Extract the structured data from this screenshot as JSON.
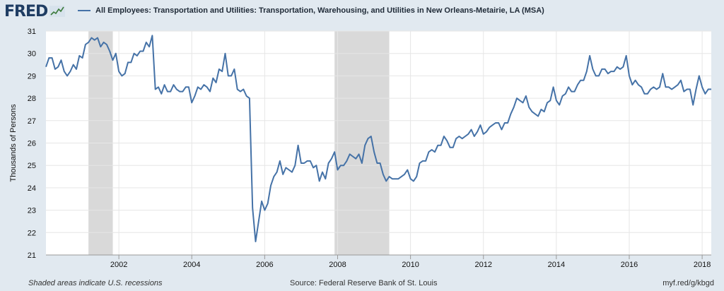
{
  "logo": {
    "text": "FRED"
  },
  "legend": {
    "label": "All Employees: Transportation and Utilities: Transportation, Warehousing, and Utilities in New Orleans-Metairie, LA (MSA)",
    "color": "#4572a7"
  },
  "footer": {
    "left": "Shaded areas indicate U.S. recessions",
    "source": "Source: Federal Reserve Bank of St. Louis",
    "url": "myf.red/g/kbgd"
  },
  "chart_data": {
    "type": "line",
    "ylabel": "Thousands of Persons",
    "ylim": [
      21,
      31
    ],
    "yticks": [
      21,
      22,
      23,
      24,
      25,
      26,
      27,
      28,
      29,
      30,
      31
    ],
    "xlim": [
      "2000-01",
      "2018-04"
    ],
    "xticks": [
      "2002",
      "2004",
      "2006",
      "2008",
      "2010",
      "2012",
      "2014",
      "2016",
      "2018"
    ],
    "grid": true,
    "recessions": [
      [
        "2001-03",
        "2001-11"
      ],
      [
        "2007-12",
        "2009-06"
      ]
    ],
    "series": [
      {
        "name": "All Employees: Transportation and Utilities: Transportation, Warehousing, and Utilities in New Orleans-Metairie, LA (MSA)",
        "color": "#4572a7",
        "points": [
          [
            "2000-01",
            29.4
          ],
          [
            "2000-02",
            29.8
          ],
          [
            "2000-03",
            29.8
          ],
          [
            "2000-04",
            29.3
          ],
          [
            "2000-05",
            29.4
          ],
          [
            "2000-06",
            29.7
          ],
          [
            "2000-07",
            29.2
          ],
          [
            "2000-08",
            29.0
          ],
          [
            "2000-09",
            29.2
          ],
          [
            "2000-10",
            29.5
          ],
          [
            "2000-11",
            29.3
          ],
          [
            "2000-12",
            29.9
          ],
          [
            "2001-01",
            29.8
          ],
          [
            "2001-02",
            30.4
          ],
          [
            "2001-03",
            30.5
          ],
          [
            "2001-04",
            30.7
          ],
          [
            "2001-05",
            30.6
          ],
          [
            "2001-06",
            30.7
          ],
          [
            "2001-07",
            30.3
          ],
          [
            "2001-08",
            30.5
          ],
          [
            "2001-09",
            30.4
          ],
          [
            "2001-10",
            30.1
          ],
          [
            "2001-11",
            29.7
          ],
          [
            "2001-12",
            30.0
          ],
          [
            "2002-01",
            29.2
          ],
          [
            "2002-02",
            29.0
          ],
          [
            "2002-03",
            29.1
          ],
          [
            "2002-04",
            29.6
          ],
          [
            "2002-05",
            29.6
          ],
          [
            "2002-06",
            30.0
          ],
          [
            "2002-07",
            29.9
          ],
          [
            "2002-08",
            30.1
          ],
          [
            "2002-09",
            30.1
          ],
          [
            "2002-10",
            30.5
          ],
          [
            "2002-11",
            30.3
          ],
          [
            "2002-12",
            30.8
          ],
          [
            "2003-01",
            28.4
          ],
          [
            "2003-02",
            28.5
          ],
          [
            "2003-03",
            28.2
          ],
          [
            "2003-04",
            28.6
          ],
          [
            "2003-05",
            28.3
          ],
          [
            "2003-06",
            28.3
          ],
          [
            "2003-07",
            28.6
          ],
          [
            "2003-08",
            28.4
          ],
          [
            "2003-09",
            28.3
          ],
          [
            "2003-10",
            28.3
          ],
          [
            "2003-11",
            28.5
          ],
          [
            "2003-12",
            28.5
          ],
          [
            "2004-01",
            27.8
          ],
          [
            "2004-02",
            28.1
          ],
          [
            "2004-03",
            28.5
          ],
          [
            "2004-04",
            28.4
          ],
          [
            "2004-05",
            28.6
          ],
          [
            "2004-06",
            28.5
          ],
          [
            "2004-07",
            28.3
          ],
          [
            "2004-08",
            28.9
          ],
          [
            "2004-09",
            28.7
          ],
          [
            "2004-10",
            29.3
          ],
          [
            "2004-11",
            29.2
          ],
          [
            "2004-12",
            30.0
          ],
          [
            "2005-01",
            29.0
          ],
          [
            "2005-02",
            29.0
          ],
          [
            "2005-03",
            29.3
          ],
          [
            "2005-04",
            28.4
          ],
          [
            "2005-05",
            28.3
          ],
          [
            "2005-06",
            28.4
          ],
          [
            "2005-07",
            28.1
          ],
          [
            "2005-08",
            28.0
          ],
          [
            "2005-09",
            23.1
          ],
          [
            "2005-10",
            21.6
          ],
          [
            "2005-11",
            22.5
          ],
          [
            "2005-12",
            23.4
          ],
          [
            "2006-01",
            23.0
          ],
          [
            "2006-02",
            23.3
          ],
          [
            "2006-03",
            24.1
          ],
          [
            "2006-04",
            24.5
          ],
          [
            "2006-05",
            24.7
          ],
          [
            "2006-06",
            25.2
          ],
          [
            "2006-07",
            24.6
          ],
          [
            "2006-08",
            24.9
          ],
          [
            "2006-09",
            24.8
          ],
          [
            "2006-10",
            24.7
          ],
          [
            "2006-11",
            25.0
          ],
          [
            "2006-12",
            25.9
          ],
          [
            "2007-01",
            25.1
          ],
          [
            "2007-02",
            25.1
          ],
          [
            "2007-03",
            25.2
          ],
          [
            "2007-04",
            25.2
          ],
          [
            "2007-05",
            24.9
          ],
          [
            "2007-06",
            25.0
          ],
          [
            "2007-07",
            24.3
          ],
          [
            "2007-08",
            24.7
          ],
          [
            "2007-09",
            24.4
          ],
          [
            "2007-10",
            25.1
          ],
          [
            "2007-11",
            25.3
          ],
          [
            "2007-12",
            25.6
          ],
          [
            "2008-01",
            24.8
          ],
          [
            "2008-02",
            25.0
          ],
          [
            "2008-03",
            25.0
          ],
          [
            "2008-04",
            25.2
          ],
          [
            "2008-05",
            25.5
          ],
          [
            "2008-06",
            25.4
          ],
          [
            "2008-07",
            25.3
          ],
          [
            "2008-08",
            25.5
          ],
          [
            "2008-09",
            25.1
          ],
          [
            "2008-10",
            25.9
          ],
          [
            "2008-11",
            26.2
          ],
          [
            "2008-12",
            26.3
          ],
          [
            "2009-01",
            25.6
          ],
          [
            "2009-02",
            25.1
          ],
          [
            "2009-03",
            25.1
          ],
          [
            "2009-04",
            24.6
          ],
          [
            "2009-05",
            24.3
          ],
          [
            "2009-06",
            24.5
          ],
          [
            "2009-07",
            24.4
          ],
          [
            "2009-08",
            24.4
          ],
          [
            "2009-09",
            24.4
          ],
          [
            "2009-10",
            24.5
          ],
          [
            "2009-11",
            24.6
          ],
          [
            "2009-12",
            24.8
          ],
          [
            "2010-01",
            24.4
          ],
          [
            "2010-02",
            24.3
          ],
          [
            "2010-03",
            24.5
          ],
          [
            "2010-04",
            25.1
          ],
          [
            "2010-05",
            25.2
          ],
          [
            "2010-06",
            25.2
          ],
          [
            "2010-07",
            25.6
          ],
          [
            "2010-08",
            25.7
          ],
          [
            "2010-09",
            25.6
          ],
          [
            "2010-10",
            25.9
          ],
          [
            "2010-11",
            25.9
          ],
          [
            "2010-12",
            26.3
          ],
          [
            "2011-01",
            26.1
          ],
          [
            "2011-02",
            25.8
          ],
          [
            "2011-03",
            25.8
          ],
          [
            "2011-04",
            26.2
          ],
          [
            "2011-05",
            26.3
          ],
          [
            "2011-06",
            26.2
          ],
          [
            "2011-07",
            26.3
          ],
          [
            "2011-08",
            26.4
          ],
          [
            "2011-09",
            26.6
          ],
          [
            "2011-10",
            26.3
          ],
          [
            "2011-11",
            26.5
          ],
          [
            "2011-12",
            26.8
          ],
          [
            "2012-01",
            26.4
          ],
          [
            "2012-02",
            26.5
          ],
          [
            "2012-03",
            26.7
          ],
          [
            "2012-04",
            26.8
          ],
          [
            "2012-05",
            26.9
          ],
          [
            "2012-06",
            26.9
          ],
          [
            "2012-07",
            26.6
          ],
          [
            "2012-08",
            26.9
          ],
          [
            "2012-09",
            26.9
          ],
          [
            "2012-10",
            27.3
          ],
          [
            "2012-11",
            27.6
          ],
          [
            "2012-12",
            28.0
          ],
          [
            "2013-01",
            27.9
          ],
          [
            "2013-02",
            27.8
          ],
          [
            "2013-03",
            28.1
          ],
          [
            "2013-04",
            27.6
          ],
          [
            "2013-05",
            27.4
          ],
          [
            "2013-06",
            27.3
          ],
          [
            "2013-07",
            27.2
          ],
          [
            "2013-08",
            27.5
          ],
          [
            "2013-09",
            27.4
          ],
          [
            "2013-10",
            27.8
          ],
          [
            "2013-11",
            27.9
          ],
          [
            "2013-12",
            28.5
          ],
          [
            "2014-01",
            27.9
          ],
          [
            "2014-02",
            27.7
          ],
          [
            "2014-03",
            28.1
          ],
          [
            "2014-04",
            28.2
          ],
          [
            "2014-05",
            28.5
          ],
          [
            "2014-06",
            28.3
          ],
          [
            "2014-07",
            28.3
          ],
          [
            "2014-08",
            28.6
          ],
          [
            "2014-09",
            28.8
          ],
          [
            "2014-10",
            28.8
          ],
          [
            "2014-11",
            29.2
          ],
          [
            "2014-12",
            29.9
          ],
          [
            "2015-01",
            29.3
          ],
          [
            "2015-02",
            29.0
          ],
          [
            "2015-03",
            29.0
          ],
          [
            "2015-04",
            29.3
          ],
          [
            "2015-05",
            29.3
          ],
          [
            "2015-06",
            29.1
          ],
          [
            "2015-07",
            29.2
          ],
          [
            "2015-08",
            29.2
          ],
          [
            "2015-09",
            29.4
          ],
          [
            "2015-10",
            29.3
          ],
          [
            "2015-11",
            29.4
          ],
          [
            "2015-12",
            29.9
          ],
          [
            "2016-01",
            29.0
          ],
          [
            "2016-02",
            28.6
          ],
          [
            "2016-03",
            28.8
          ],
          [
            "2016-04",
            28.6
          ],
          [
            "2016-05",
            28.5
          ],
          [
            "2016-06",
            28.2
          ],
          [
            "2016-07",
            28.2
          ],
          [
            "2016-08",
            28.4
          ],
          [
            "2016-09",
            28.5
          ],
          [
            "2016-10",
            28.4
          ],
          [
            "2016-11",
            28.5
          ],
          [
            "2016-12",
            29.1
          ],
          [
            "2017-01",
            28.5
          ],
          [
            "2017-02",
            28.5
          ],
          [
            "2017-03",
            28.4
          ],
          [
            "2017-04",
            28.5
          ],
          [
            "2017-05",
            28.6
          ],
          [
            "2017-06",
            28.8
          ],
          [
            "2017-07",
            28.3
          ],
          [
            "2017-08",
            28.4
          ],
          [
            "2017-09",
            28.4
          ],
          [
            "2017-10",
            27.7
          ],
          [
            "2017-11",
            28.4
          ],
          [
            "2017-12",
            29.0
          ],
          [
            "2018-01",
            28.5
          ],
          [
            "2018-02",
            28.2
          ],
          [
            "2018-03",
            28.4
          ],
          [
            "2018-04",
            28.4
          ]
        ]
      }
    ]
  }
}
